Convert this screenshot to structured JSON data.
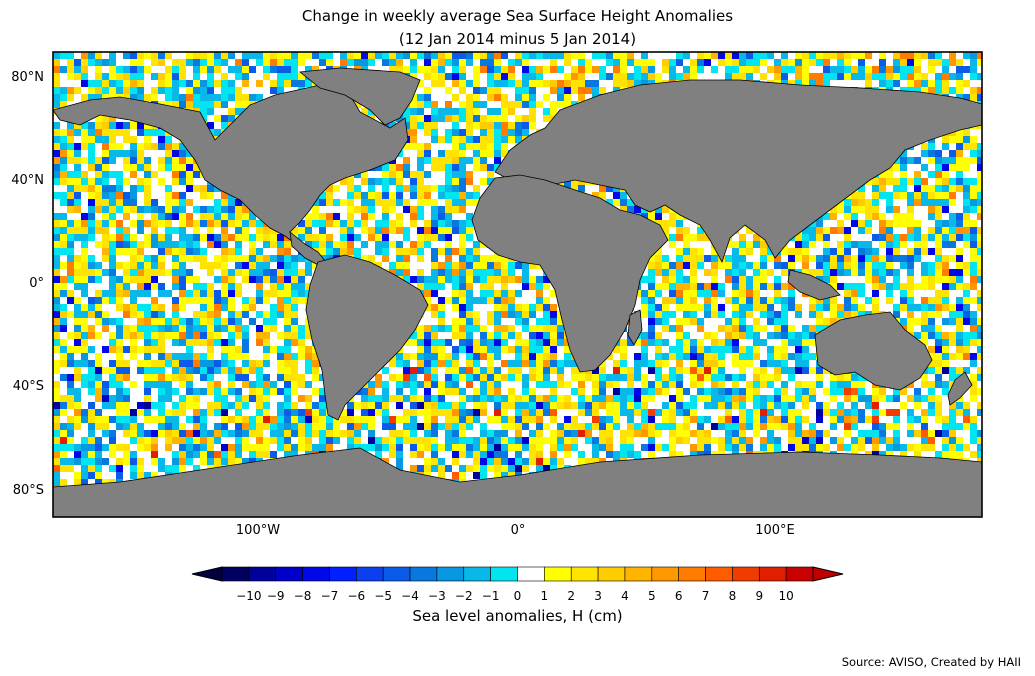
{
  "title": {
    "line1": "Change in weekly average Sea Surface Height Anomalies",
    "line2": "(12 Jan 2014 minus 5 Jan 2014)"
  },
  "lat_ticks": [
    "80°N",
    "40°N",
    "0°",
    "40°S",
    "80°S"
  ],
  "lon_ticks": [
    "100°W",
    "0°",
    "100°E"
  ],
  "colorbar": {
    "title": "Sea level anomalies, H (cm)",
    "labels": [
      "−10",
      "−9",
      "−8",
      "−7",
      "−6",
      "−5",
      "−4",
      "−3",
      "−2",
      "−1",
      "0",
      "1",
      "2",
      "3",
      "4",
      "5",
      "6",
      "7",
      "8",
      "9",
      "10"
    ],
    "colors": [
      "#000060",
      "#00009a",
      "#0000c8",
      "#0008e8",
      "#0020ff",
      "#0a40f0",
      "#0a5ce8",
      "#0878e0",
      "#0898e0",
      "#08b8e8",
      "#00e5f0",
      "#ffffff",
      "#ffff00",
      "#ffe400",
      "#ffcc00",
      "#ffb400",
      "#ff9800",
      "#ff7c00",
      "#ff5c00",
      "#f03c00",
      "#e01e00",
      "#c80000"
    ],
    "under_color": "#000040",
    "over_color": "#c00000"
  },
  "source": "Source: AVISO, Created by HAII",
  "land_color": "#808080"
}
